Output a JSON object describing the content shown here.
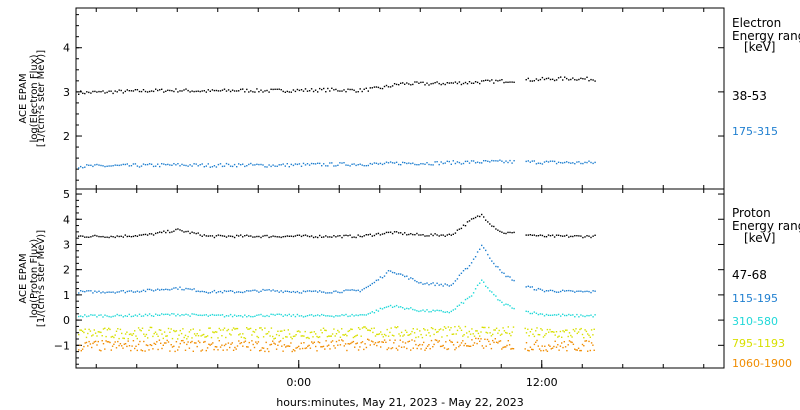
{
  "chart_data": [
    {
      "type": "scatter",
      "panel": "electron",
      "ylabel_lines": [
        "ACE EPAM",
        "log(Electron Flux)",
        "[1/(cm²s ster MeV)]"
      ],
      "legend_title": [
        "Electron",
        "Energy range",
        "[keV]"
      ],
      "xlim": [
        -11.0,
        21.0
      ],
      "ylim": [
        0.8,
        4.9
      ],
      "yticks": [
        2,
        3,
        4
      ],
      "series": [
        {
          "name": "38-53",
          "color": "#000000",
          "x": [
            -10.5,
            -9,
            -7.5,
            -6,
            -4.5,
            -3,
            -1.5,
            0,
            1.5,
            3,
            4,
            5,
            6.5,
            8,
            9.5,
            11,
            12,
            13.5,
            14.5
          ],
          "y": [
            3.0,
            3.02,
            3.04,
            3.05,
            3.03,
            3.05,
            3.04,
            3.05,
            3.06,
            3.05,
            3.1,
            3.2,
            3.2,
            3.22,
            3.25,
            3.28,
            3.3,
            3.32,
            3.3
          ]
        },
        {
          "name": "175-315",
          "color": "#1f7fd0",
          "x": [
            -10.5,
            -9,
            -7.5,
            -6,
            -4.5,
            -3,
            -1.5,
            0,
            1.5,
            3,
            4,
            5,
            6.5,
            8,
            9.5,
            11,
            12,
            13.5,
            14.5
          ],
          "y": [
            1.33,
            1.34,
            1.35,
            1.36,
            1.35,
            1.36,
            1.35,
            1.36,
            1.37,
            1.38,
            1.38,
            1.4,
            1.4,
            1.42,
            1.43,
            1.43,
            1.42,
            1.41,
            1.41
          ]
        }
      ]
    },
    {
      "type": "scatter",
      "panel": "proton",
      "ylabel_lines": [
        "ACE EPAM",
        "log(Proton Flux)",
        "[1/(cm²s ster MeV)]"
      ],
      "legend_title": [
        "Proton",
        "Energy range",
        "[keV]"
      ],
      "xlim": [
        -11.0,
        21.0
      ],
      "ylim": [
        -1.9,
        5.2
      ],
      "yticks": [
        -1,
        0,
        1,
        2,
        3,
        4,
        5
      ],
      "series": [
        {
          "name": "47-68",
          "color": "#000000",
          "x": [
            -10.5,
            -9,
            -7.5,
            -6,
            -4.5,
            -3,
            -1.5,
            0,
            1.5,
            3,
            3.5,
            4.5,
            6,
            7.5,
            8.5,
            9,
            9.5,
            10,
            11,
            12,
            13.5,
            14.5
          ],
          "y": [
            3.35,
            3.35,
            3.4,
            3.6,
            3.35,
            3.35,
            3.35,
            3.35,
            3.35,
            3.35,
            3.4,
            3.5,
            3.4,
            3.4,
            4.0,
            4.2,
            3.8,
            3.5,
            3.45,
            3.35,
            3.35,
            3.35
          ]
        },
        {
          "name": "115-195",
          "color": "#1f7fd0",
          "x": [
            -10.5,
            -9,
            -7.5,
            -6,
            -4.5,
            -3,
            -1.5,
            0,
            1.5,
            3,
            3.5,
            4.5,
            6,
            7.5,
            8.5,
            9,
            9.5,
            10,
            11,
            12,
            13.5,
            14.5
          ],
          "y": [
            1.15,
            1.15,
            1.2,
            1.3,
            1.15,
            1.15,
            1.2,
            1.15,
            1.15,
            1.2,
            1.4,
            2.0,
            1.5,
            1.4,
            2.3,
            3.0,
            2.4,
            1.9,
            1.4,
            1.2,
            1.15,
            1.15
          ]
        },
        {
          "name": "310-580",
          "color": "#20d8d8",
          "x": [
            -10.5,
            -9,
            -7.5,
            -6,
            -4.5,
            -3,
            -1.5,
            0,
            1.5,
            3,
            3.5,
            4.5,
            6,
            7.5,
            8.5,
            9,
            9.5,
            10,
            11,
            12,
            13.5,
            14.5
          ],
          "y": [
            0.2,
            0.2,
            0.22,
            0.25,
            0.2,
            0.2,
            0.22,
            0.2,
            0.2,
            0.22,
            0.3,
            0.6,
            0.4,
            0.35,
            1.0,
            1.6,
            1.1,
            0.7,
            0.4,
            0.25,
            0.2,
            0.2
          ]
        },
        {
          "name": "795-1193",
          "color": "#d8e000",
          "x": [
            -10.5,
            -9,
            -7.5,
            -6,
            -4.5,
            -3,
            -1.5,
            0,
            1.5,
            3,
            4.5,
            6,
            7.5,
            9,
            10.5,
            12,
            13.5,
            14.5
          ],
          "y": [
            -0.5,
            -0.5,
            -0.48,
            -0.5,
            -0.5,
            -0.48,
            -0.5,
            -0.5,
            -0.48,
            -0.45,
            -0.45,
            -0.45,
            -0.45,
            -0.4,
            -0.45,
            -0.5,
            -0.5,
            -0.5
          ]
        },
        {
          "name": "1060-1900",
          "color": "#f08c00",
          "x": [
            -10.5,
            -9,
            -7.5,
            -6,
            -4.5,
            -3,
            -1.5,
            0,
            1.5,
            3,
            4.5,
            6,
            7.5,
            9,
            10.5,
            12,
            13.5,
            14.5
          ],
          "y": [
            -1.0,
            -1.0,
            -0.98,
            -1.0,
            -1.0,
            -0.98,
            -1.0,
            -1.0,
            -0.98,
            -0.95,
            -0.95,
            -0.95,
            -0.95,
            -0.9,
            -0.95,
            -1.0,
            -1.0,
            -1.0
          ]
        }
      ]
    }
  ],
  "x_axis": {
    "ticks": [
      {
        "value": 0,
        "label": "0:00"
      },
      {
        "value": 12,
        "label": "12:00"
      }
    ],
    "minor_step": 2,
    "xlabel": "hours:minutes, May 21, 2023 - May 22, 2023"
  }
}
